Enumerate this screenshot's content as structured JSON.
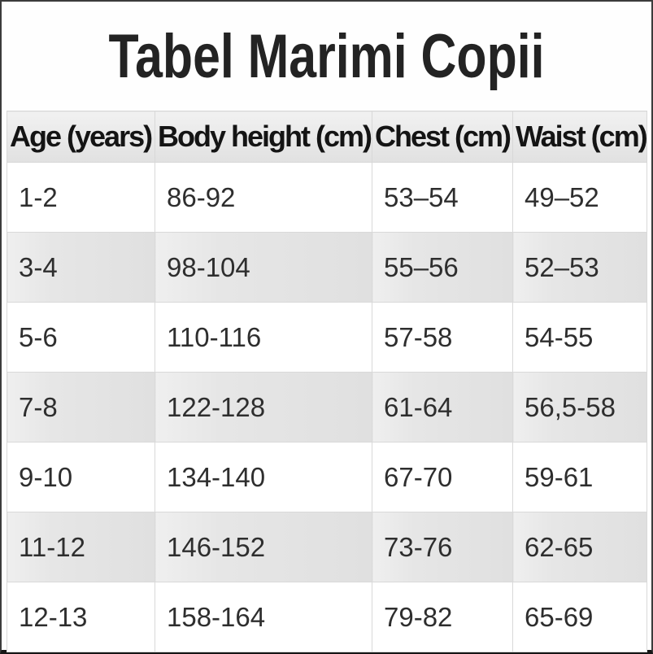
{
  "title": "Tabel Marimi Copii",
  "chart_data": {
    "type": "table",
    "title": "Tabel Marimi Copii",
    "columns": [
      "Age (years)",
      "Body height (cm)",
      "Chest (cm)",
      "Waist (cm)"
    ],
    "rows": [
      [
        "1-2",
        "86-92",
        "53–54",
        "49–52"
      ],
      [
        "3-4",
        "98-104",
        "55–56",
        "52–53"
      ],
      [
        "5-6",
        "110-116",
        "57-58",
        "54-55"
      ],
      [
        "7-8",
        "122-128",
        "61-64",
        "56,5-58"
      ],
      [
        "9-10",
        "134-140",
        "67-70",
        "59-61"
      ],
      [
        "11-12",
        "146-152",
        "73-76",
        "62-65"
      ],
      [
        "12-13",
        "158-164",
        "79-82",
        "65-69"
      ]
    ],
    "layout": {
      "zebra_striping": true,
      "striped_row_indexes": [
        1,
        3,
        5
      ],
      "grid": true,
      "legend_position": "none"
    }
  },
  "colors": {
    "frame_border": "#3c3c3c",
    "frame_border_bottom": "#161616",
    "header_background": "#e8e8e8",
    "stripe_background": "#e4e4e4",
    "grid_line": "#d9d9d9",
    "title_text": "#232323",
    "header_text": "#141414",
    "cell_text": "#2e2e2e"
  }
}
